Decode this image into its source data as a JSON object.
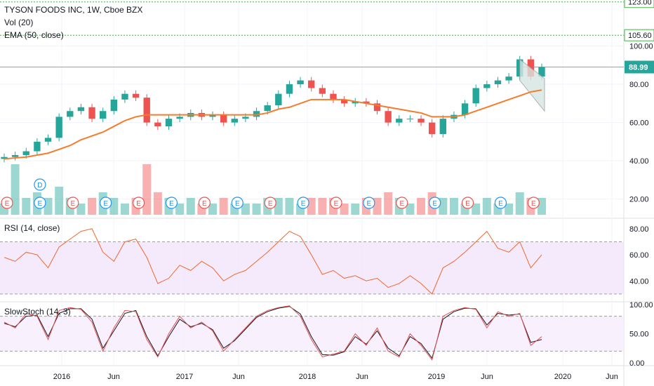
{
  "header": {
    "title": "TYSON FOODS INC, 1W, Cboe BZX",
    "vol_label": "Vol (20)",
    "ema_label": "EMA (50, close)"
  },
  "panes": {
    "rsi_label": "RSI (14, close)",
    "stoch_label": "SlowStoch (14, 3)"
  },
  "colors": {
    "up": "#26a69a",
    "down": "#ef5350",
    "ema": "#f57c2b",
    "rsi": "#f2672d",
    "stoch_k": "#e54e4e",
    "stoch_d": "#131722",
    "band_fill": "#f1e0fb",
    "last_price": "#26a69a",
    "alert_line": "#4caf50",
    "hline": "#62b6c9"
  },
  "chart_data": [
    {
      "type": "candlestick",
      "name": "price",
      "ylim": [
        10,
        124
      ],
      "y_ticks": [
        "20.00",
        "40.00",
        "60.00",
        "80.00",
        "100.00"
      ],
      "x_ticks": [
        "2016",
        "Jun",
        "2017",
        "Jun",
        "2018",
        "Jun",
        "2019",
        "Jun",
        "2020",
        "Jun"
      ],
      "x": [
        "2015-09",
        "2015-10",
        "2015-11",
        "2015-12",
        "2016-01",
        "2016-02",
        "2016-03",
        "2016-04",
        "2016-05",
        "2016-06",
        "2016-07",
        "2016-08",
        "2016-09",
        "2016-10",
        "2016-11",
        "2016-12",
        "2017-01",
        "2017-02",
        "2017-03",
        "2017-04",
        "2017-05",
        "2017-06",
        "2017-07",
        "2017-08",
        "2017-09",
        "2017-10",
        "2017-11",
        "2017-12",
        "2018-01",
        "2018-02",
        "2018-03",
        "2018-04",
        "2018-05",
        "2018-06",
        "2018-07",
        "2018-08",
        "2018-09",
        "2018-10",
        "2018-11",
        "2018-12",
        "2019-01",
        "2019-02",
        "2019-03",
        "2019-04",
        "2019-05",
        "2019-06",
        "2019-07",
        "2019-08",
        "2019-09",
        "2019-10"
      ],
      "close": [
        42,
        43,
        45,
        50,
        52,
        63,
        66,
        68,
        62,
        66,
        72,
        75,
        73,
        60,
        58,
        62,
        63,
        65,
        63,
        64,
        60,
        62,
        63,
        66,
        69,
        75,
        80,
        82,
        78,
        75,
        72,
        70,
        71,
        70,
        66,
        60,
        62,
        62,
        60,
        54,
        62,
        64,
        70,
        78,
        80,
        82,
        84,
        93,
        84,
        89
      ],
      "ema_50": [
        41,
        41.5,
        42,
        43,
        44,
        46,
        48,
        51,
        53,
        55,
        58,
        61,
        63,
        64,
        64,
        64,
        64,
        64,
        64,
        64,
        64,
        64,
        64,
        64,
        65,
        67,
        68,
        70,
        72,
        72,
        72,
        72,
        71,
        70,
        69,
        68,
        67,
        66,
        65,
        63,
        63,
        63,
        64,
        66,
        68,
        70,
        72,
        74,
        76,
        77
      ],
      "last_price": "88.99",
      "alert_levels": [
        "123.00",
        "105.60"
      ],
      "horizontal_line": 88.99,
      "earnings_markers": "E",
      "dividend_marker": "D"
    },
    {
      "type": "bar",
      "name": "volume",
      "values": [
        0.2,
        0.9,
        0.3,
        0.4,
        0.3,
        0.5,
        0.3,
        0.2,
        0.3,
        0.4,
        0.3,
        0.2,
        0.3,
        0.9,
        0.4,
        0.3,
        0.2,
        0.3,
        0.2,
        0.2,
        0.3,
        0.2,
        0.2,
        0.2,
        0.3,
        0.3,
        0.3,
        0.2,
        0.3,
        0.3,
        0.3,
        0.2,
        0.2,
        0.3,
        0.3,
        0.4,
        0.3,
        0.2,
        0.3,
        0.4,
        0.3,
        0.3,
        0.2,
        0.2,
        0.3,
        0.2,
        0.2,
        0.4,
        0.3,
        0.3
      ]
    },
    {
      "type": "line",
      "name": "RSI (14, close)",
      "ylim": [
        24,
        88
      ],
      "y_ticks": [
        "40.00",
        "60.00",
        "80.00"
      ],
      "band": [
        30,
        70
      ],
      "values": [
        58,
        55,
        62,
        60,
        50,
        66,
        72,
        78,
        80,
        62,
        55,
        70,
        72,
        58,
        38,
        42,
        52,
        48,
        55,
        50,
        40,
        45,
        48,
        55,
        62,
        70,
        78,
        74,
        60,
        45,
        48,
        42,
        44,
        40,
        42,
        35,
        38,
        44,
        38,
        30,
        50,
        55,
        62,
        70,
        78,
        65,
        62,
        70,
        50,
        60
      ]
    },
    {
      "type": "line",
      "name": "SlowStoch (14, 3)",
      "ylim": [
        -5,
        105
      ],
      "y_ticks": [
        "0.00",
        "50.00",
        "100.00"
      ],
      "band": [
        20,
        80
      ],
      "k": [
        70,
        60,
        85,
        80,
        40,
        90,
        95,
        92,
        70,
        20,
        60,
        90,
        88,
        40,
        10,
        50,
        80,
        60,
        70,
        55,
        20,
        40,
        60,
        80,
        90,
        95,
        98,
        80,
        40,
        10,
        15,
        20,
        50,
        30,
        60,
        20,
        10,
        50,
        30,
        5,
        80,
        90,
        95,
        92,
        60,
        88,
        80,
        85,
        30,
        45
      ],
      "d": [
        68,
        62,
        80,
        82,
        45,
        85,
        93,
        93,
        75,
        25,
        55,
        85,
        90,
        45,
        12,
        45,
        75,
        62,
        68,
        57,
        25,
        38,
        58,
        78,
        88,
        94,
        97,
        84,
        45,
        14,
        13,
        19,
        45,
        32,
        55,
        25,
        12,
        45,
        33,
        8,
        75,
        88,
        94,
        93,
        65,
        85,
        82,
        84,
        35,
        40
      ]
    }
  ]
}
